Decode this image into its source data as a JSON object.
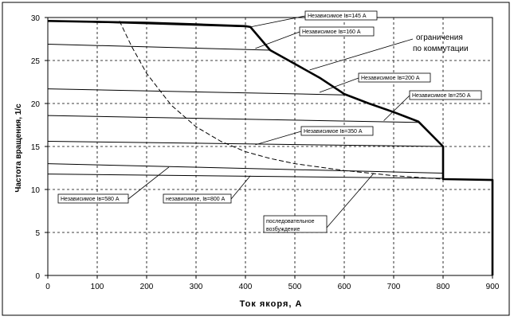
{
  "chart_data": {
    "type": "line",
    "xlabel": "Ток якоря, А",
    "ylabel": "Частота вращения, 1/с",
    "xlim": [
      0,
      900
    ],
    "ylim": [
      0,
      30
    ],
    "x_ticks": [
      "0",
      "100",
      "200",
      "300",
      "400",
      "500",
      "600",
      "700",
      "800",
      "900"
    ],
    "y_ticks": [
      "0",
      "5",
      "10",
      "15",
      "20",
      "25",
      "30"
    ],
    "grid": true,
    "series": [
      {
        "name": "Независимое Iв=145 А",
        "style": "thin",
        "x": [
          0,
          410
        ],
        "y": [
          29.6,
          28.9
        ]
      },
      {
        "name": "Независимое Iв=160 А",
        "style": "thin",
        "x": [
          0,
          450
        ],
        "y": [
          26.9,
          26.2
        ]
      },
      {
        "name": "Независимое Iв=200 А",
        "style": "thin",
        "x": [
          0,
          600
        ],
        "y": [
          21.7,
          21.0
        ]
      },
      {
        "name": "Независимое Iв=250 А",
        "style": "thin",
        "x": [
          0,
          750
        ],
        "y": [
          18.6,
          17.8
        ]
      },
      {
        "name": "Независимое Iв=350 А",
        "style": "thin",
        "x": [
          0,
          800
        ],
        "y": [
          15.6,
          15.0
        ]
      },
      {
        "name": "Независимое Iв=580 А",
        "style": "thin",
        "x": [
          0,
          800
        ],
        "y": [
          13.0,
          11.9
        ]
      },
      {
        "name": "Независимое Iв=800 А",
        "style": "thin",
        "x": [
          0,
          800
        ],
        "y": [
          11.8,
          11.3
        ]
      },
      {
        "name": "ограничения по коммутации",
        "style": "thick",
        "x": [
          0,
          100,
          200,
          300,
          400,
          410,
          450,
          500,
          550,
          600,
          650,
          700,
          750,
          800,
          800,
          900,
          900
        ],
        "y": [
          29.6,
          29.5,
          29.4,
          29.2,
          29.0,
          28.9,
          26.2,
          24.6,
          23.0,
          21.1,
          20.0,
          19.0,
          17.9,
          15.0,
          11.2,
          11.1,
          0
        ]
      },
      {
        "name": "последовательное возбуждение",
        "style": "dashed",
        "x": [
          145,
          170,
          200,
          250,
          300,
          350,
          400,
          450,
          500,
          600,
          700,
          800
        ],
        "y": [
          29.6,
          26.6,
          23.5,
          19.8,
          17.3,
          15.6,
          14.4,
          13.6,
          13.0,
          12.2,
          11.6,
          11.2
        ]
      }
    ],
    "annotations": [
      {
        "id": "iv145",
        "text": "Независимое Iв=145 А",
        "boxed": true,
        "target": [
          410,
          28.9
        ]
      },
      {
        "id": "iv160",
        "text": "Независимое Iв=160 А",
        "boxed": true,
        "target": [
          420,
          26.4
        ]
      },
      {
        "id": "comm_line1",
        "text": "ограничения",
        "boxed": false,
        "target": [
          530,
          23.9
        ]
      },
      {
        "id": "comm_line2",
        "text": "по коммутации",
        "boxed": false
      },
      {
        "id": "iv200",
        "text": "Независимое Iв=200 А",
        "boxed": true,
        "target": [
          550,
          21.3
        ]
      },
      {
        "id": "iv250",
        "text": "Независимое Iв=250 А",
        "boxed": true,
        "target": [
          680,
          18.0
        ]
      },
      {
        "id": "iv350",
        "text": "Независимое Iв=350 А",
        "boxed": true,
        "target": [
          420,
          15.2
        ]
      },
      {
        "id": "iv580",
        "text": "Независимое Iв=580 А",
        "boxed": true,
        "target": [
          245,
          12.6
        ]
      },
      {
        "id": "iv800",
        "text": "независимое, Iв=800 А",
        "boxed": true,
        "target": [
          410,
          11.6
        ]
      },
      {
        "id": "seq_line1",
        "text": "последовательное",
        "boxed": true,
        "target": [
          660,
          11.9
        ]
      },
      {
        "id": "seq_line2",
        "text": "возбуждение",
        "boxed": false
      }
    ]
  }
}
